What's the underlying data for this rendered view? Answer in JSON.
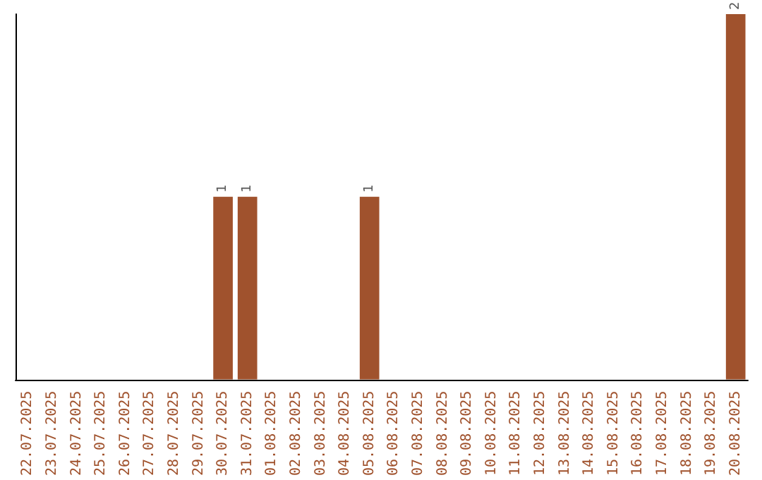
{
  "chart_data": {
    "type": "bar",
    "categories": [
      "22.07.2025",
      "23.07.2025",
      "24.07.2025",
      "25.07.2025",
      "26.07.2025",
      "27.07.2025",
      "28.07.2025",
      "29.07.2025",
      "30.07.2025",
      "31.07.2025",
      "01.08.2025",
      "02.08.2025",
      "03.08.2025",
      "04.08.2025",
      "05.08.2025",
      "06.08.2025",
      "07.08.2025",
      "08.08.2025",
      "09.08.2025",
      "10.08.2025",
      "11.08.2025",
      "12.08.2025",
      "13.08.2025",
      "14.08.2025",
      "15.08.2025",
      "16.08.2025",
      "17.08.2025",
      "18.08.2025",
      "19.08.2025",
      "20.08.2025"
    ],
    "values": [
      0,
      0,
      0,
      0,
      0,
      0,
      0,
      0,
      1,
      1,
      0,
      0,
      0,
      0,
      1,
      0,
      0,
      0,
      0,
      0,
      0,
      0,
      0,
      0,
      0,
      0,
      0,
      0,
      0,
      2
    ],
    "value_labels": [
      null,
      null,
      null,
      null,
      null,
      null,
      null,
      null,
      "1",
      "1",
      null,
      null,
      null,
      null,
      "1",
      null,
      null,
      null,
      null,
      null,
      null,
      null,
      null,
      null,
      null,
      null,
      null,
      null,
      null,
      "2"
    ],
    "color": "#a0522d",
    "tick_labels": "x"
  }
}
